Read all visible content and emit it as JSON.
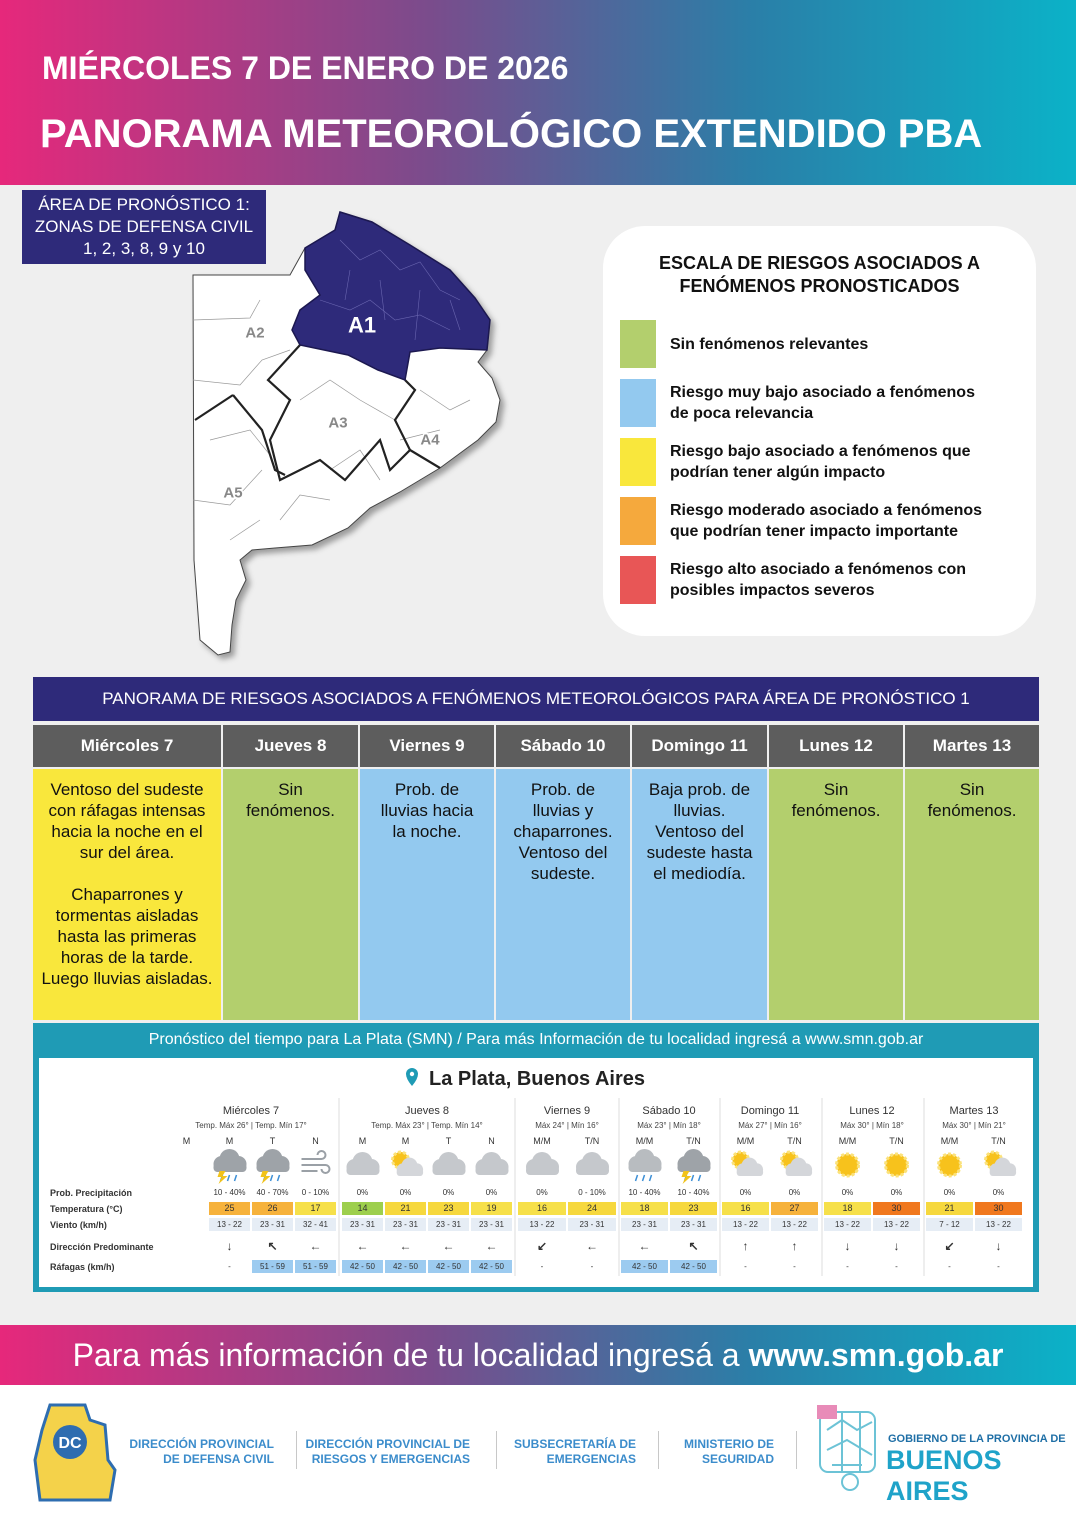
{
  "header": {
    "date": "MIÉRCOLES 7 DE ENERO DE 2026",
    "title": "PANORAMA METEOROLÓGICO EXTENDIDO PBA"
  },
  "area": {
    "label": "ÁREA DE PRONÓSTICO 1:\nZONAS DE DEFENSA CIVIL\n1, 2, 3, 8, 9 y 10",
    "map_labels": [
      "A1",
      "A2",
      "A3",
      "A4",
      "A5"
    ]
  },
  "scale": {
    "title": "ESCALA DE RIESGOS ASOCIADOS A\nFENÓMENOS PRONOSTICADOS",
    "items": [
      {
        "label": "Sin fenómenos relevantes",
        "color": "#b3cf6d"
      },
      {
        "label": "Riesgo muy bajo asociado a fenómenos\nde poca relevancia",
        "color": "#93c9ef"
      },
      {
        "label": "Riesgo bajo asociado a fenómenos que\npodrían tener algún impacto",
        "color": "#f9e73c"
      },
      {
        "label": "Riesgo moderado asociado a fenómenos\nque podrían tener impacto importante",
        "color": "#f5a93d"
      },
      {
        "label": "Riesgo alto asociado a fenómenos con\nposibles impactos severos",
        "color": "#e85656"
      }
    ]
  },
  "risk_table": {
    "title": "PANORAMA DE RIESGOS ASOCIADOS A FENÓMENOS METEOROLÓGICOS PARA ÁREA DE PRONÓSTICO 1",
    "days": [
      {
        "day": "Miércoles 7",
        "text": "Ventoso del sudeste con ráfagas intensas hacia la noche en el sur del área.\n\nChaparrones y tormentas aisladas hasta las primeras horas de la tarde. Luego lluvias aisladas.",
        "color": "#f9e73c"
      },
      {
        "day": "Jueves 8",
        "text": "Sin\nfenómenos.",
        "color": "#b3cf6d"
      },
      {
        "day": "Viernes 9",
        "text": "Prob. de\nlluvias hacia\nla noche.",
        "color": "#93c9ef"
      },
      {
        "day": "Sábado 10",
        "text": "Prob. de\nlluvias y\nchaparrones.\nVentoso del\nsudeste.",
        "color": "#93c9ef"
      },
      {
        "day": "Domingo 11",
        "text": "Baja prob. de\nlluvias.\nVentoso del\nsudeste hasta\nel mediodía.",
        "color": "#93c9ef"
      },
      {
        "day": "Lunes 12",
        "text": "Sin\nfenómenos.",
        "color": "#b3cf6d"
      },
      {
        "day": "Martes 13",
        "text": "Sin\nfenómenos.",
        "color": "#b3cf6d"
      }
    ]
  },
  "smn": {
    "banner": "Pronóstico del tiempo para La Plata (SMN) / Para más Información de tu localidad ingresá a www.smn.gob.ar",
    "location": "La Plata, Buenos Aires",
    "row_labels": [
      "Prob. Precipitación",
      "Temperatura (°C)",
      "Viento (km/h)",
      "Dirección Predominante",
      "Ráfagas (km/h)"
    ],
    "days": [
      {
        "day": "Miércoles 7",
        "temps": "Temp. Máx 26° | Temp. Mín 17°",
        "periods": [
          {
            "period": "M"
          },
          {
            "period": "M",
            "icon": "storm",
            "prob": "10 - 40%",
            "temp": 25,
            "temp_color": "#f6b23c",
            "wind": "13 - 22",
            "direction": "↓",
            "gusts": "-"
          },
          {
            "period": "T",
            "icon": "storm",
            "prob": "40 - 70%",
            "temp": 26,
            "temp_color": "#f6b23c",
            "wind": "23 - 31",
            "direction": "↖",
            "gusts": "51 - 59"
          },
          {
            "period": "N",
            "icon": "wind",
            "prob": "0 - 10%",
            "temp": 17,
            "temp_color": "#f6e04a",
            "wind": "32 - 41",
            "direction": "←",
            "gusts": "51 - 59"
          }
        ]
      },
      {
        "day": "Jueves 8",
        "temps": "Temp. Máx 23° | Temp. Mín 14°",
        "periods": [
          {
            "period": "M",
            "icon": "cloud",
            "prob": "0%",
            "temp": 14,
            "temp_color": "#9dcf4d",
            "wind": "23 - 31",
            "direction": "←",
            "gusts": "42 - 50"
          },
          {
            "period": "M",
            "icon": "partly",
            "prob": "0%",
            "temp": 21,
            "temp_color": "#f6d83e",
            "wind": "23 - 31",
            "direction": "←",
            "gusts": "42 - 50"
          },
          {
            "period": "T",
            "icon": "cloud",
            "prob": "0%",
            "temp": 23,
            "temp_color": "#f6d83e",
            "wind": "23 - 31",
            "direction": "←",
            "gusts": "42 - 50"
          },
          {
            "period": "N",
            "icon": "cloud",
            "prob": "0%",
            "temp": 19,
            "temp_color": "#f6e04a",
            "wind": "23 - 31",
            "direction": "←",
            "gusts": "42 - 50"
          }
        ]
      },
      {
        "day": "Viernes 9",
        "temps": "Máx 24° | Mín 16°",
        "periods": [
          {
            "period": "M/M",
            "icon": "cloud",
            "prob": "0%",
            "temp": 16,
            "temp_color": "#f6e04a",
            "wind": "13 - 22",
            "direction": "↙",
            "gusts": "-"
          },
          {
            "period": "T/N",
            "icon": "cloud",
            "prob": "0 - 10%",
            "temp": 24,
            "temp_color": "#f6d83e",
            "wind": "23 - 31",
            "direction": "←",
            "gusts": "-"
          }
        ]
      },
      {
        "day": "Sábado 10",
        "temps": "Máx 23° | Mín 18°",
        "periods": [
          {
            "period": "M/M",
            "icon": "rain",
            "prob": "10 - 40%",
            "temp": 18,
            "temp_color": "#f6e04a",
            "wind": "23 - 31",
            "direction": "←",
            "gusts": "42 - 50"
          },
          {
            "period": "T/N",
            "icon": "storm",
            "prob": "10 - 40%",
            "temp": 23,
            "temp_color": "#f6d83e",
            "wind": "23 - 31",
            "direction": "↖",
            "gusts": "42 - 50"
          }
        ]
      },
      {
        "day": "Domingo 11",
        "temps": "Máx 27° | Mín 16°",
        "periods": [
          {
            "period": "M/M",
            "icon": "partly",
            "prob": "0%",
            "temp": 16,
            "temp_color": "#f6e04a",
            "wind": "13 - 22",
            "direction": "↑",
            "gusts": "-"
          },
          {
            "period": "T/N",
            "icon": "partly",
            "prob": "0%",
            "temp": 27,
            "temp_color": "#f6b23c",
            "wind": "13 - 22",
            "direction": "↑",
            "gusts": "-"
          }
        ]
      },
      {
        "day": "Lunes 12",
        "temps": "Máx 30° | Mín 18°",
        "periods": [
          {
            "period": "M/M",
            "icon": "sun",
            "prob": "0%",
            "temp": 18,
            "temp_color": "#f6e04a",
            "wind": "13 - 22",
            "direction": "↓",
            "gusts": "-"
          },
          {
            "period": "T/N",
            "icon": "sun",
            "prob": "0%",
            "temp": 30,
            "temp_color": "#f0781e",
            "wind": "13 - 22",
            "direction": "↓",
            "gusts": "-"
          }
        ]
      },
      {
        "day": "Martes 13",
        "temps": "Máx 30° | Mín 21°",
        "periods": [
          {
            "period": "M/M",
            "icon": "sun",
            "prob": "0%",
            "temp": 21,
            "temp_color": "#f6d83e",
            "wind": "7 - 12",
            "direction": "↙",
            "gusts": "-"
          },
          {
            "period": "T/N",
            "icon": "partly",
            "prob": "0%",
            "temp": 30,
            "temp_color": "#f0781e",
            "wind": "13 - 22",
            "direction": "↓",
            "gusts": "-"
          }
        ]
      }
    ]
  },
  "footer": {
    "text": "Para más información de tu localidad ingresá a",
    "link": "www.smn.gob.ar",
    "logo_badge": "DC",
    "logos": [
      "DIRECCIÓN PROVINCIAL\nDE DEFENSA CIVIL",
      "DIRECCIÓN PROVINCIAL DE\nRIESGOS Y EMERGENCIAS",
      "SUBSECRETARÍA DE\nEMERGENCIAS",
      "MINISTERIO DE\nSEGURIDAD"
    ],
    "government": "GOBIERNO DE LA PROVINCIA DE",
    "province": "BUENOS AIRES"
  }
}
